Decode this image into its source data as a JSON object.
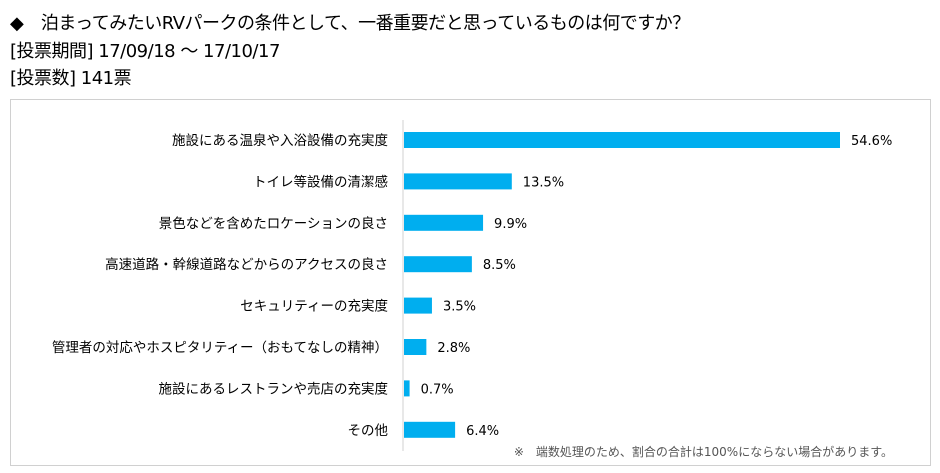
{
  "header": {
    "question": "◆　泊まってみたいRVパークの条件として、一番重要だと思っているものは何ですか？",
    "period": "[投票期間] 17/09/18 ～ 17/10/17",
    "votes": "[投票数] 141票"
  },
  "chart_data": {
    "type": "bar",
    "orientation": "horizontal",
    "categories": [
      "施設にある温泉や入浴設備の充実度",
      "トイレ等設備の清潔感",
      "景色などを含めたロケーションの良さ",
      "高速道路・幹線道路などからのアクセスの良さ",
      "セキュリティーの充実度",
      "管理者の対応やホスピタリティー（おもてなしの精神）",
      "施設にあるレストランや売店の充実度",
      "その他"
    ],
    "values": [
      54.6,
      13.5,
      9.9,
      8.5,
      3.5,
      2.8,
      0.7,
      6.4
    ],
    "labels": [
      "54.6%",
      "13.5%",
      "9.9%",
      "8.5%",
      "3.5%",
      "2.8%",
      "0.7%",
      "6.4%"
    ],
    "unit": "%",
    "xlim": [
      0,
      54.6
    ],
    "grid": false,
    "bar_color": "#00AEEF",
    "note": "※　端数処理のため、割合の合計は100%にならない場合があります。"
  }
}
